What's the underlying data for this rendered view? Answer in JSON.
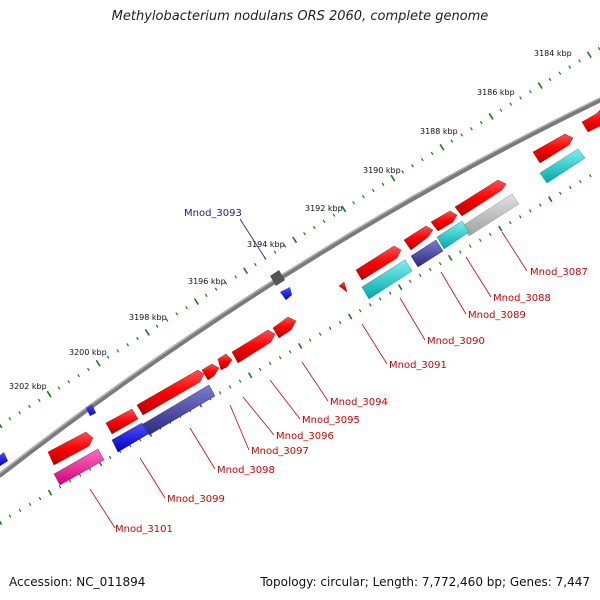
{
  "title": "Methylobacterium nodulans ORS 2060, complete genome",
  "footer": {
    "accession": "Accession: NC_011894",
    "summary": "Topology: circular; Length: 7,772,460 bp; Genes: 7,447"
  },
  "scale_labels": [
    "3184 kbp",
    "3186 kbp",
    "3188 kbp",
    "3190 kbp",
    "3192 kbp",
    "3194 kbp",
    "3196 kbp",
    "3198 kbp",
    "3200 kbp",
    "3202 kbp"
  ],
  "gene_labels": [
    {
      "name": "Mnod_3087",
      "color": "#d40000"
    },
    {
      "name": "Mnod_3088",
      "color": "#d40000"
    },
    {
      "name": "Mnod_3089",
      "color": "#d40000"
    },
    {
      "name": "Mnod_3090",
      "color": "#d40000"
    },
    {
      "name": "Mnod_3091",
      "color": "#d40000"
    },
    {
      "name": "Mnod_3093",
      "color": "#1a1a9e"
    },
    {
      "name": "Mnod_3094",
      "color": "#d40000"
    },
    {
      "name": "Mnod_3095",
      "color": "#d40000"
    },
    {
      "name": "Mnod_3096",
      "color": "#d40000"
    },
    {
      "name": "Mnod_3097",
      "color": "#d40000"
    },
    {
      "name": "Mnod_3098",
      "color": "#d40000"
    },
    {
      "name": "Mnod_3099",
      "color": "#d40000"
    },
    {
      "name": "Mnod_3101",
      "color": "#d40000"
    }
  ],
  "colors": {
    "backbone": "#7a7a7a",
    "forward_gene": "#ff0000",
    "reverse_gene": "#1010ff",
    "cyan_feature": "#00d0d0",
    "magenta_feature": "#ff1493",
    "indigo_feature": "#3a3a9a",
    "grey_feature": "#bfbfbf",
    "tick": "#1a7a1a"
  }
}
